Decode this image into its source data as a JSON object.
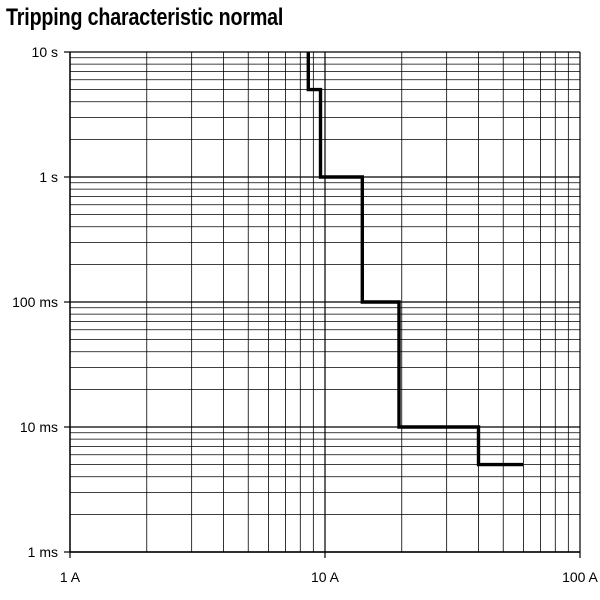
{
  "chart_data": {
    "type": "line",
    "title": "Tripping characteristic normal",
    "xlabel": "",
    "ylabel": "",
    "x_scale": "log",
    "y_scale": "log",
    "grid": true,
    "xlim": [
      1,
      100
    ],
    "ylim": [
      0.001,
      10
    ],
    "x_ticks": [
      {
        "value": 1,
        "label": "1 A"
      },
      {
        "value": 10,
        "label": "10 A"
      },
      {
        "value": 100,
        "label": "100 A"
      }
    ],
    "y_ticks": [
      {
        "value": 10,
        "label": "10 s"
      },
      {
        "value": 1,
        "label": "1 s"
      },
      {
        "value": 0.1,
        "label": "100 ms"
      },
      {
        "value": 0.01,
        "label": "10 ms"
      },
      {
        "value": 0.001,
        "label": "1 ms"
      }
    ],
    "series": [
      {
        "name": "",
        "color": "#000000",
        "points": [
          {
            "x": 8.6,
            "y": 10
          },
          {
            "x": 8.6,
            "y": 5
          },
          {
            "x": 9.6,
            "y": 5
          },
          {
            "x": 9.6,
            "y": 1
          },
          {
            "x": 14,
            "y": 1
          },
          {
            "x": 14,
            "y": 0.1
          },
          {
            "x": 19.5,
            "y": 0.1
          },
          {
            "x": 19.5,
            "y": 0.01
          },
          {
            "x": 40,
            "y": 0.01
          },
          {
            "x": 40,
            "y": 0.005
          },
          {
            "x": 60,
            "y": 0.005
          }
        ]
      }
    ]
  }
}
